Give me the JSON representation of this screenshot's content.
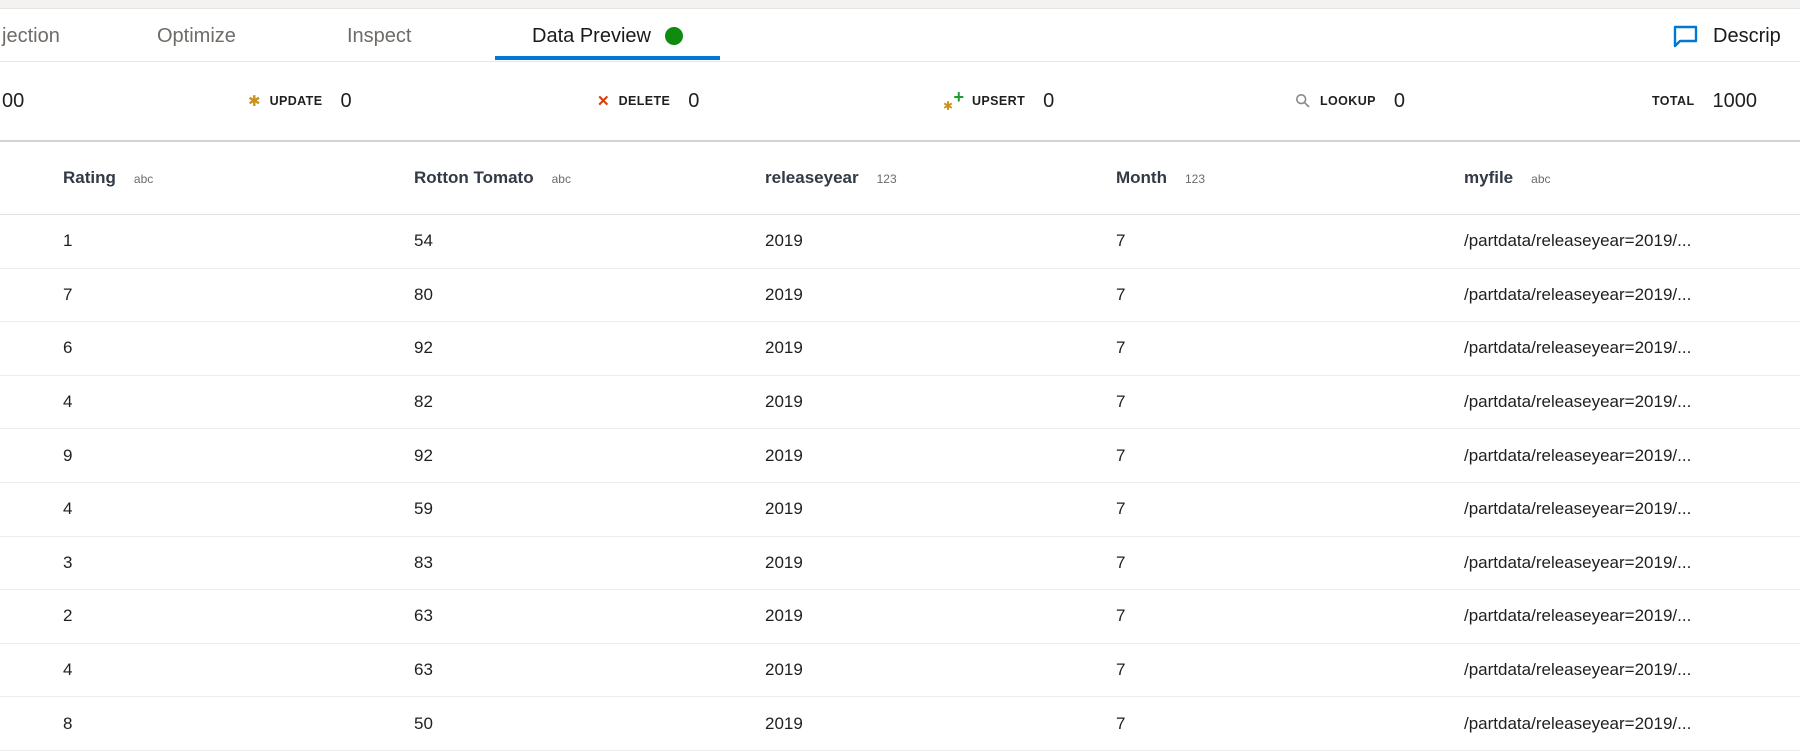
{
  "colors": {
    "accent_blue": "#0078d4",
    "debug_status_green": "#0f8b0f",
    "update_gold": "#c9921a",
    "delete_red": "#d83b01",
    "upsert_plus_green": "#1f9a2e"
  },
  "tabs": {
    "items": [
      {
        "label": "jection",
        "active": false
      },
      {
        "label": "Optimize",
        "active": false
      },
      {
        "label": "Inspect",
        "active": false
      },
      {
        "label": "Data Preview",
        "active": true
      }
    ],
    "description_label": "Descrip"
  },
  "stats": {
    "insert_partial_value": "00",
    "items": [
      {
        "label": "UPDATE",
        "value": "0",
        "icon": "asterisk-icon"
      },
      {
        "label": "DELETE",
        "value": "0",
        "icon": "x-icon"
      },
      {
        "label": "UPSERT",
        "value": "0",
        "icon": "asterisk-plus-icon"
      },
      {
        "label": "LOOKUP",
        "value": "0",
        "icon": "magnifier-icon"
      }
    ],
    "total": {
      "label": "TOTAL",
      "value": "1000"
    }
  },
  "table": {
    "columns": [
      {
        "name": "Rating",
        "type": "abc"
      },
      {
        "name": "Rotton Tomato",
        "type": "abc"
      },
      {
        "name": "releaseyear",
        "type": "123"
      },
      {
        "name": "Month",
        "type": "123"
      },
      {
        "name": "myfile",
        "type": "abc"
      }
    ],
    "rows": [
      [
        "1",
        "54",
        "2019",
        "7",
        "/partdata/releaseyear=2019/..."
      ],
      [
        "7",
        "80",
        "2019",
        "7",
        "/partdata/releaseyear=2019/..."
      ],
      [
        "6",
        "92",
        "2019",
        "7",
        "/partdata/releaseyear=2019/..."
      ],
      [
        "4",
        "82",
        "2019",
        "7",
        "/partdata/releaseyear=2019/..."
      ],
      [
        "9",
        "92",
        "2019",
        "7",
        "/partdata/releaseyear=2019/..."
      ],
      [
        "4",
        "59",
        "2019",
        "7",
        "/partdata/releaseyear=2019/..."
      ],
      [
        "3",
        "83",
        "2019",
        "7",
        "/partdata/releaseyear=2019/..."
      ],
      [
        "2",
        "63",
        "2019",
        "7",
        "/partdata/releaseyear=2019/..."
      ],
      [
        "4",
        "63",
        "2019",
        "7",
        "/partdata/releaseyear=2019/..."
      ],
      [
        "8",
        "50",
        "2019",
        "7",
        "/partdata/releaseyear=2019/..."
      ]
    ]
  }
}
